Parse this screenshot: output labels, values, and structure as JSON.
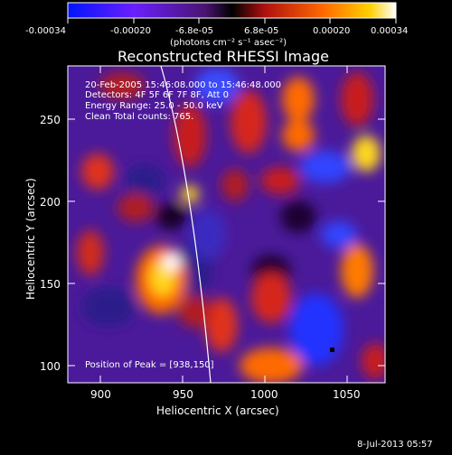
{
  "colorbar": {
    "tick_labels": [
      "-0.00034",
      "-0.00020",
      "-6.8e-05",
      "6.8e-05",
      "0.00020",
      "0.00034"
    ],
    "units_label": "(photons cm⁻² s⁻¹ asec⁻²)",
    "colors": [
      "#0010ff",
      "#5a1dff",
      "#8b2bd8",
      "#000000",
      "#c81414",
      "#ff6a00",
      "#ffd21a",
      "#ffffff"
    ]
  },
  "plot": {
    "title": "Reconstructed RHESSI Image",
    "xlabel": "Heliocentric X (arcsec)",
    "ylabel": "Heliocentric Y (arcsec)",
    "x_ticks": [
      "900",
      "950",
      "1000",
      "1050"
    ],
    "y_ticks": [
      "100",
      "150",
      "200",
      "250"
    ],
    "x_range": [
      880,
      1072
    ],
    "y_range": [
      89,
      282
    ],
    "info_lines": [
      "20-Feb-2005 15:46:08.000 to 15:46:48.000",
      "Detectors: 4F 5F 6F 7F 8F, Att 0",
      "Energy Range: 25.0 - 50.0 keV",
      "Clean     Total counts: 765."
    ],
    "peak_label": "Position of Peak = [938,150]"
  },
  "footer": {
    "date": "8-Jul-2013 05:57"
  }
}
